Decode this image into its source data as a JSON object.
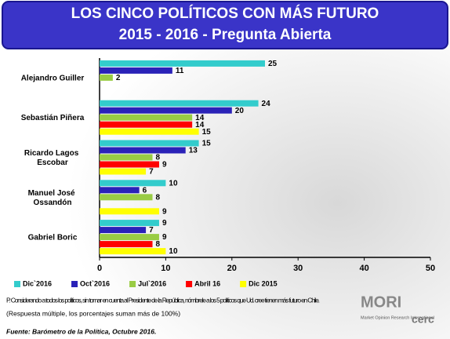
{
  "chart_data": {
    "type": "bar",
    "orientation": "horizontal",
    "title": "LOS  CINCO POLÍTICOS CON MÁS FUTURO",
    "subtitle": "2015 -  2016  - Pregunta Abierta",
    "categories": [
      "Alejandro Guiller",
      "Sebastián Piñera",
      "Ricardo Lagos Escobar",
      "Manuel José Ossandón",
      "Gabriel Boric"
    ],
    "series": [
      {
        "name": "Dic`2016",
        "color": "#33cccc",
        "values": [
          25,
          24,
          15,
          10,
          9
        ]
      },
      {
        "name": "Oct`2016",
        "color": "#2a22b8",
        "values": [
          11,
          20,
          13,
          6,
          7
        ]
      },
      {
        "name": "Jul`2016",
        "color": "#99cc44",
        "values": [
          2,
          14,
          8,
          8,
          9
        ]
      },
      {
        "name": "Abril 16",
        "color": "#ff0000",
        "values": [
          null,
          14,
          9,
          null,
          8
        ]
      },
      {
        "name": "Dic 2015",
        "color": "#ffff00",
        "values": [
          null,
          15,
          7,
          9,
          10
        ]
      }
    ],
    "xlim": [
      0,
      50
    ],
    "xticks": [
      0,
      10,
      20,
      30,
      40,
      50
    ],
    "legend": "bottom"
  },
  "footnote": {
    "question": "P. Considerando a todos los políticos, sin tomar en cuenta al Presidente de la República, nómbrele a los 5 políticos que Ud. cree tienen más futuro en Chile.",
    "note": "(Respuesta múltiple, los porcentajes suman más de 100%)",
    "source": "Fuente:  Barómetro de la Política, Octubre  2016."
  },
  "logo": {
    "mori": "MORI",
    "tagline": "Market Opinion Research International",
    "cerc": "cerc"
  }
}
